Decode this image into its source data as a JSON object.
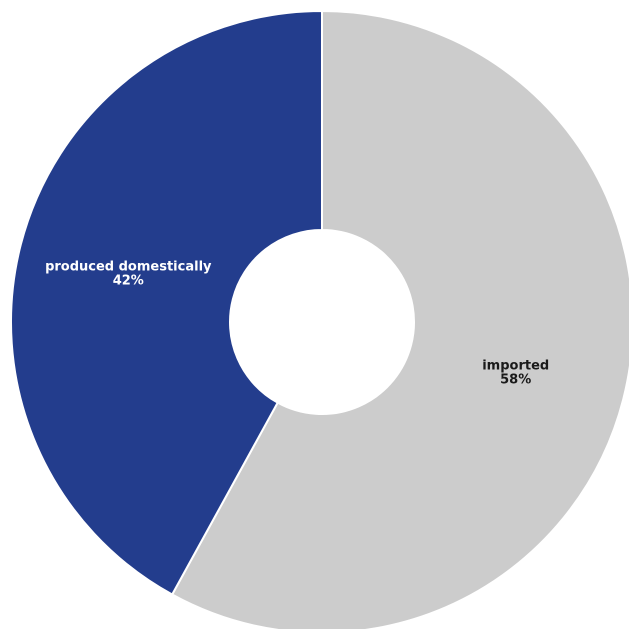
{
  "chart_data": {
    "type": "pie",
    "donut": true,
    "start_angle_deg": 0,
    "direction": "clockwise",
    "slices": [
      {
        "category": "imported",
        "value": 58,
        "percent_label": "58%",
        "color": "#cccccc",
        "label_color": "#1a1a1a"
      },
      {
        "category": "produced domestically",
        "value": 42,
        "percent_label": "42%",
        "color": "#233d8d",
        "label_color": "#ffffff"
      }
    ],
    "legend": "none"
  }
}
